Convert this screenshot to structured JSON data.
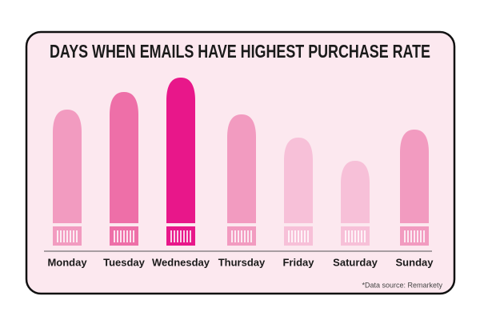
{
  "chart_data": {
    "type": "bar",
    "title": "DAYS WHEN EMAILS HAVE HIGHEST PURCHASE RATE",
    "categories": [
      "Monday",
      "Tuesday",
      "Wednesday",
      "Thursday",
      "Friday",
      "Saturday",
      "Sunday"
    ],
    "values": [
      170,
      192,
      210,
      164,
      135,
      106,
      145
    ],
    "colors": [
      "#f29bc0",
      "#ee6fa8",
      "#e8178a",
      "#f29bc0",
      "#f7c0d8",
      "#f7c0d8",
      "#f29bc0"
    ],
    "source": "*Data source: Remarkety"
  }
}
